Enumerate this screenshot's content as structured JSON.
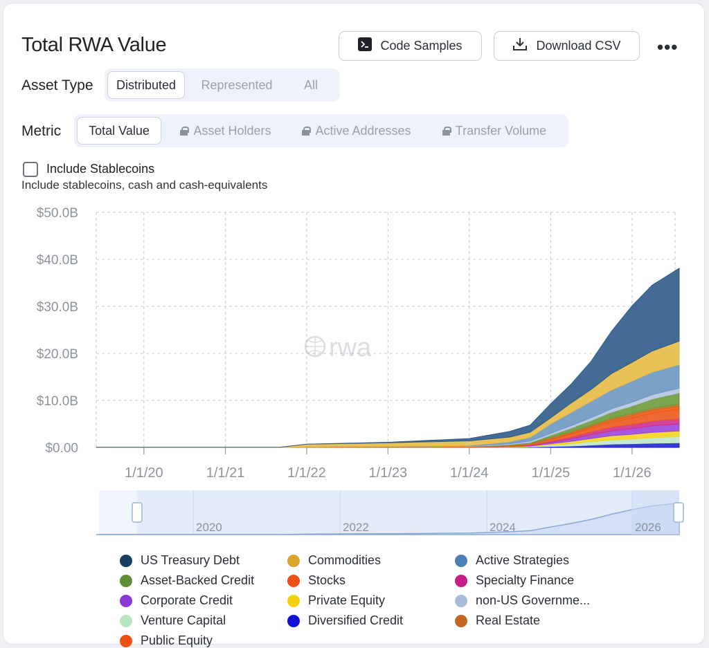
{
  "title": "Total RWA Value",
  "header_buttons": {
    "code_samples": "Code Samples",
    "download_csv": "Download CSV",
    "more": "•••"
  },
  "asset_type": {
    "label": "Asset Type",
    "options": [
      "Distributed",
      "Represented",
      "All"
    ],
    "selected": "Distributed"
  },
  "metric": {
    "label": "Metric",
    "options": [
      "Total Value",
      "Asset Holders",
      "Active Addresses",
      "Transfer Volume"
    ],
    "selected": "Total Value"
  },
  "stablecoins": {
    "label": "Include Stablecoins",
    "help": "Include stablecoins, cash and cash-equivalents",
    "checked": false
  },
  "watermark": "rwa",
  "navigator": {
    "year_labels": [
      "2020",
      "2022",
      "2024",
      "2026"
    ]
  },
  "colors": {
    "us_treasury": "#2f5b87",
    "commodities": "#e7bb45",
    "active_strategies": "#6e97c2",
    "asset_backed": "#6b9a3a",
    "stocks": "#ec5a1f",
    "specialty": "#cf2f8c",
    "corporate": "#9b45d9",
    "private_equity": "#f4d321",
    "non_us": "#b3c5df",
    "venture": "#bfe8c8",
    "diversified": "#2424cf",
    "real_estate": "#cc6a24",
    "public_equity": "#ee5a14"
  },
  "chart_data": {
    "type": "area",
    "stacked": true,
    "title": "",
    "xlabel": "",
    "ylabel": "",
    "ylim": [
      0,
      50
    ],
    "x_tick_labels": [
      "1/1/20",
      "1/1/21",
      "1/1/22",
      "1/1/23",
      "1/1/24",
      "1/1/25",
      "1/1/26"
    ],
    "y_tick_labels": [
      "$0.00",
      "$10.0B",
      "$20.0B",
      "$30.0B",
      "$40.0B",
      "$50.0B"
    ],
    "grid": true,
    "legend_position": "bottom",
    "x": [
      "2019-06-01",
      "2021-09-01",
      "2022-01-01",
      "2023-01-01",
      "2024-01-01",
      "2024-07-01",
      "2024-10-01",
      "2025-01-01",
      "2025-04-01",
      "2025-07-01",
      "2025-10-01",
      "2026-01-01",
      "2026-04-01",
      "2026-08-01"
    ],
    "series": [
      {
        "name": "Diversified Credit",
        "color": "#2424cf",
        "values": [
          0,
          0,
          0,
          0,
          0,
          0.05,
          0.1,
          0.2,
          0.3,
          0.5,
          0.7,
          0.8,
          0.9,
          1.0
        ]
      },
      {
        "name": "Venture Capital",
        "color": "#bfe8c8",
        "values": [
          0,
          0,
          0,
          0,
          0,
          0.05,
          0.1,
          0.3,
          0.5,
          0.7,
          0.9,
          1.0,
          1.2,
          1.3
        ]
      },
      {
        "name": "Private Equity",
        "color": "#f4d321",
        "values": [
          0,
          0,
          0,
          0,
          0,
          0.05,
          0.1,
          0.3,
          0.5,
          0.7,
          0.9,
          1.0,
          1.1,
          1.2
        ]
      },
      {
        "name": "Corporate Credit",
        "color": "#9b45d9",
        "values": [
          0,
          0,
          0,
          0,
          0,
          0.05,
          0.1,
          0.3,
          0.5,
          0.8,
          1.0,
          1.2,
          1.4,
          1.5
        ]
      },
      {
        "name": "Specialty Finance",
        "color": "#cf2f8c",
        "values": [
          0,
          0,
          0,
          0,
          0,
          0.05,
          0.1,
          0.2,
          0.4,
          0.6,
          0.8,
          0.9,
          1.0,
          1.1
        ]
      },
      {
        "name": "Stocks",
        "color": "#ec5a1f",
        "values": [
          0,
          0,
          0,
          0,
          0,
          0.05,
          0.1,
          0.4,
          0.6,
          0.8,
          1.1,
          1.4,
          1.7,
          2.0
        ]
      },
      {
        "name": "Public Equity",
        "color": "#ee5a14",
        "values": [
          0,
          0,
          0,
          0,
          0,
          0,
          0.05,
          0.1,
          0.2,
          0.3,
          0.4,
          0.5,
          0.6,
          0.7
        ]
      },
      {
        "name": "Real Estate",
        "color": "#cc6a24",
        "values": [
          0,
          0,
          0.1,
          0.2,
          0.2,
          0.2,
          0.2,
          0.3,
          0.3,
          0.3,
          0.4,
          0.4,
          0.4,
          0.4
        ]
      },
      {
        "name": "Asset-Backed Credit",
        "color": "#6b9a3a",
        "values": [
          0,
          0,
          0,
          0,
          0,
          0.1,
          0.2,
          0.5,
          0.8,
          1.0,
          1.3,
          1.6,
          2.0,
          2.4
        ]
      },
      {
        "name": "non-US Government Debt",
        "color": "#b3c5df",
        "values": [
          0,
          0,
          0,
          0,
          0.1,
          0.2,
          0.3,
          0.4,
          0.5,
          0.6,
          0.7,
          0.8,
          0.9,
          1.0
        ]
      },
      {
        "name": "Active Strategies",
        "color": "#6e97c2",
        "values": [
          0,
          0,
          0,
          0,
          0.1,
          0.4,
          0.8,
          2.0,
          2.8,
          3.5,
          4.0,
          4.5,
          4.8,
          5.0
        ]
      },
      {
        "name": "Commodities",
        "color": "#e7bb45",
        "values": [
          0.05,
          0.05,
          0.6,
          0.8,
          1.0,
          1.0,
          1.1,
          1.3,
          2.0,
          2.5,
          3.5,
          4.0,
          4.5,
          5.0
        ]
      },
      {
        "name": "US Treasury Debt",
        "color": "#2f5b87",
        "values": [
          0,
          0,
          0,
          0.1,
          0.5,
          1.2,
          1.5,
          3.0,
          4.0,
          6.0,
          9.0,
          12.0,
          14.0,
          15.5
        ]
      }
    ]
  },
  "legend": [
    {
      "name": "US Treasury Debt",
      "color": "#173e63"
    },
    {
      "name": "Commodities",
      "color": "#d9a62b"
    },
    {
      "name": "Active Strategies",
      "color": "#4c80b4"
    },
    {
      "name": "Asset-Backed Credit",
      "color": "#5f8c34"
    },
    {
      "name": "Stocks",
      "color": "#ec4f16"
    },
    {
      "name": "Specialty Finance",
      "color": "#c81f86"
    },
    {
      "name": "Corporate Credit",
      "color": "#8a38d9"
    },
    {
      "name": "Private Equity",
      "color": "#f4d10f"
    },
    {
      "name": "non-US Governme...",
      "color": "#a9bcd9"
    },
    {
      "name": "Venture Capital",
      "color": "#b9e6c1"
    },
    {
      "name": "Diversified Credit",
      "color": "#1010d8"
    },
    {
      "name": "Real Estate",
      "color": "#c4661f"
    },
    {
      "name": "Public Equity",
      "color": "#ec4f10"
    }
  ]
}
